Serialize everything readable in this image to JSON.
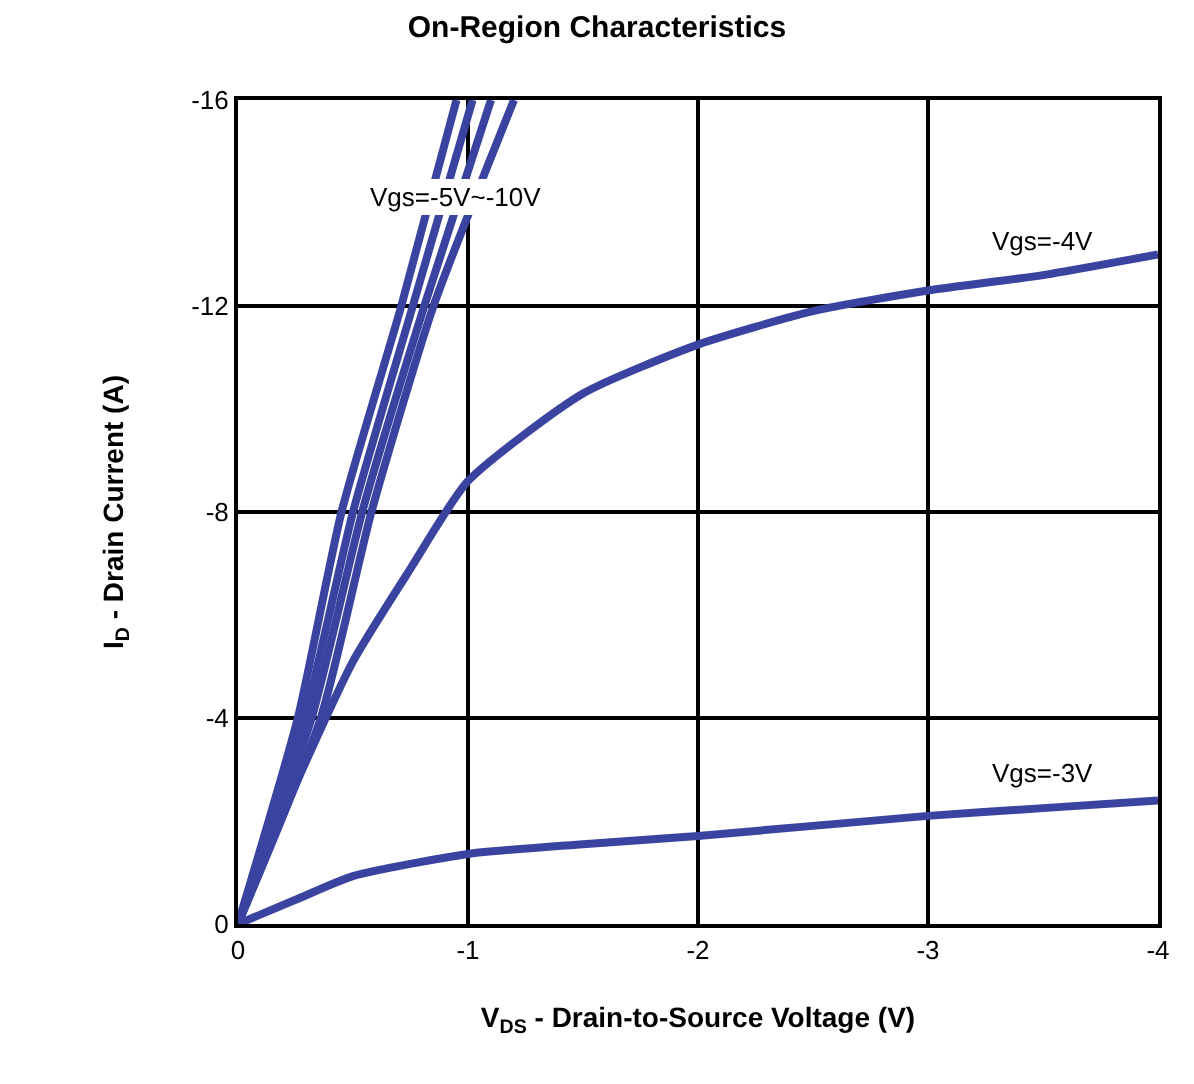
{
  "chart_data": {
    "type": "line",
    "title": "On-Region Characteristics",
    "xlabel": "V$_{DS}$ - Drain-to-Source Voltage (V)",
    "ylabel": "I$_{D}$ - Drain Current (A)",
    "xlim": [
      0,
      -4
    ],
    "xticks": [
      0,
      -1,
      -2,
      -3,
      -4
    ],
    "ylim": [
      0,
      -16
    ],
    "yticks": [
      0,
      -4,
      -8,
      -12,
      -16
    ],
    "grid": true,
    "legend": false,
    "marker": "none",
    "line_style": "solid",
    "series": [
      {
        "x": [
          0,
          -0.26,
          -0.45,
          -0.71,
          -0.95
        ],
        "values": [
          0,
          -4,
          -8,
          -12,
          -16
        ],
        "color": "#3a44a0"
      },
      {
        "x": [
          0,
          -0.29,
          -0.5,
          -0.76,
          -1.02
        ],
        "values": [
          0,
          -4,
          -8,
          -12,
          -16
        ],
        "color": "#3a44a0"
      },
      {
        "x": [
          0,
          -0.32,
          -0.54,
          -0.81,
          -1.1
        ],
        "values": [
          0,
          -4,
          -8,
          -12,
          -16
        ],
        "color": "#3a44a0"
      },
      {
        "x": [
          0,
          -0.36,
          -0.58,
          -0.85,
          -1.2
        ],
        "values": [
          0,
          -4,
          -8,
          -12,
          -16
        ],
        "color": "#3a44a0"
      },
      {
        "name": "Vgs=-4V",
        "x": [
          0,
          -0.25,
          -0.5,
          -0.75,
          -1,
          -1.5,
          -2,
          -2.5,
          -3,
          -3.5,
          -4
        ],
        "values": [
          0,
          -2.7,
          -5.1,
          -6.9,
          -8.6,
          -10.3,
          -11.25,
          -11.9,
          -12.3,
          -12.6,
          -13
        ],
        "color": "#3a44a0"
      },
      {
        "name": "Vgs=-3V",
        "x": [
          0,
          -0.25,
          -0.5,
          -1,
          -1.5,
          -2,
          -3,
          -3.5,
          -4
        ],
        "values": [
          0,
          -0.47,
          -0.93,
          -1.36,
          -1.55,
          -1.71,
          -2.1,
          -2.25,
          -2.4
        ],
        "color": "#3a44a0"
      }
    ],
    "annotations": [
      {
        "text": "Vgs=-5V~-10V",
        "x": -0.95,
        "y": -14.1
      }
    ]
  }
}
